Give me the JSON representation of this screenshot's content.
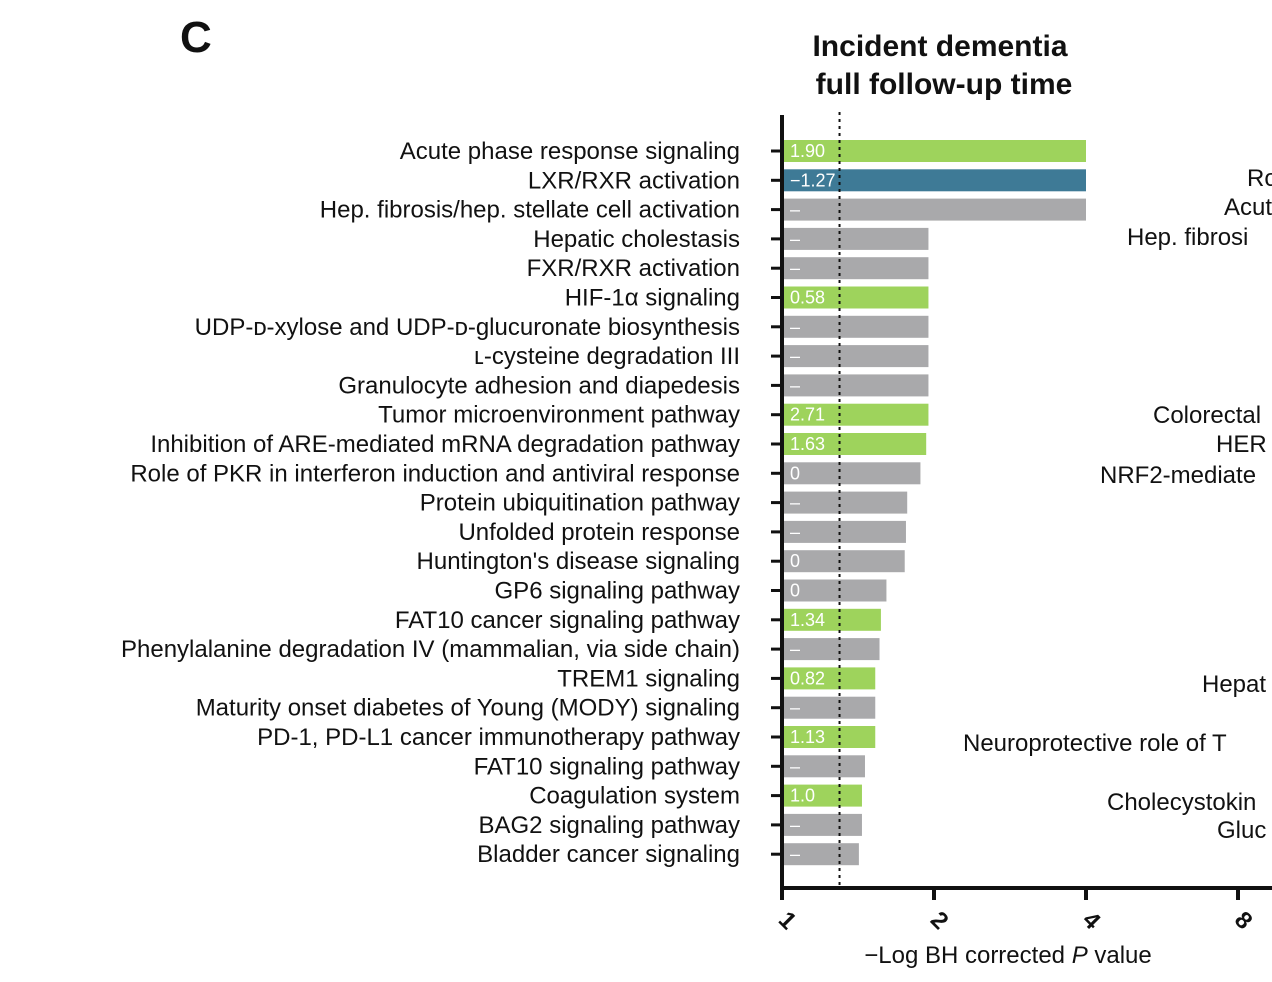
{
  "panel_letter": "C",
  "chart_data": {
    "type": "bar",
    "orientation": "horizontal",
    "title": "Incident dementia",
    "subtitle": "full follow-up time",
    "xlabel": "−Log BH corrected P value",
    "xlabel_prefix": "−Log BH corrected ",
    "xlabel_italic": "P",
    "xlabel_suffix": " value",
    "x_scale": "log2",
    "xlim": [
      1,
      8
    ],
    "xticks": [
      1,
      2,
      4,
      8
    ],
    "xtick_labels": [
      "1",
      "2",
      "4",
      "8"
    ],
    "threshold": 1.3,
    "colors": {
      "positive": "#9ed35c",
      "negative": "#3e7a96",
      "undetermined": "#a9a9ab"
    },
    "categories": [
      "Acute phase  response signaling",
      "LXR/RXR activation",
      "Hep. fibrosis/hep. stellate cell activation",
      "Hepatic cholestasis",
      "FXR/RXR activation",
      "HIF-1α signaling",
      "UDP-ᴅ-xylose and UDP-ᴅ-glucuronate biosynthesis",
      "ʟ-cysteine degradation III",
      "Granulocyte adhesion and diapedesis",
      "Tumor microenvironment  pathway",
      "Inhibition of ARE-mediated mRNA degradation pathway",
      "Role of PKR in interferon induction and antiviral  response",
      "Protein ubiquitination pathway",
      "Unfolded protein response",
      "Huntington's disease signaling",
      "GP6 signaling pathway",
      "FAT10 cancer signaling pathway",
      "Phenylalanine degradation IV (mammalian, via side chain)",
      "TREM1 signaling",
      "Maturity  onset diabetes of Young (MODY)  signaling",
      "PD-1, PD-L1 cancer immunotherapy pathway",
      "FAT10 signaling pathway",
      "Coagulation system",
      "BAG2 signaling pathway",
      "Bladder cancer signaling"
    ],
    "values": [
      4.0,
      4.0,
      4.0,
      1.95,
      1.95,
      1.95,
      1.95,
      1.95,
      1.95,
      1.95,
      1.93,
      1.88,
      1.77,
      1.76,
      1.75,
      1.61,
      1.57,
      1.56,
      1.53,
      1.53,
      1.53,
      1.46,
      1.44,
      1.44,
      1.42
    ],
    "z_labels": [
      "1.90",
      "−1.27",
      "–",
      "–",
      "–",
      "0.58",
      "–",
      "–",
      "–",
      "2.71",
      "1.63",
      "0",
      "–",
      "–",
      "0",
      "0",
      "1.34",
      "–",
      "0.82",
      "–",
      "1.13",
      "–",
      "1.0",
      "–",
      "–"
    ],
    "bar_colors": [
      "positive",
      "negative",
      "undetermined",
      "undetermined",
      "undetermined",
      "positive",
      "undetermined",
      "undetermined",
      "undetermined",
      "positive",
      "positive",
      "undetermined",
      "undetermined",
      "undetermined",
      "undetermined",
      "undetermined",
      "positive",
      "undetermined",
      "positive",
      "undetermined",
      "positive",
      "undetermined",
      "positive",
      "undetermined",
      "undetermined"
    ]
  },
  "right_panel_partial_labels": [
    "Ro",
    "Acut",
    "Hep. fibrosi",
    "Colorectal",
    "HER",
    "NRF2-mediate",
    "Hepat",
    "Neuroprotective  role of T",
    "Cholecystokin",
    "Gluc"
  ]
}
